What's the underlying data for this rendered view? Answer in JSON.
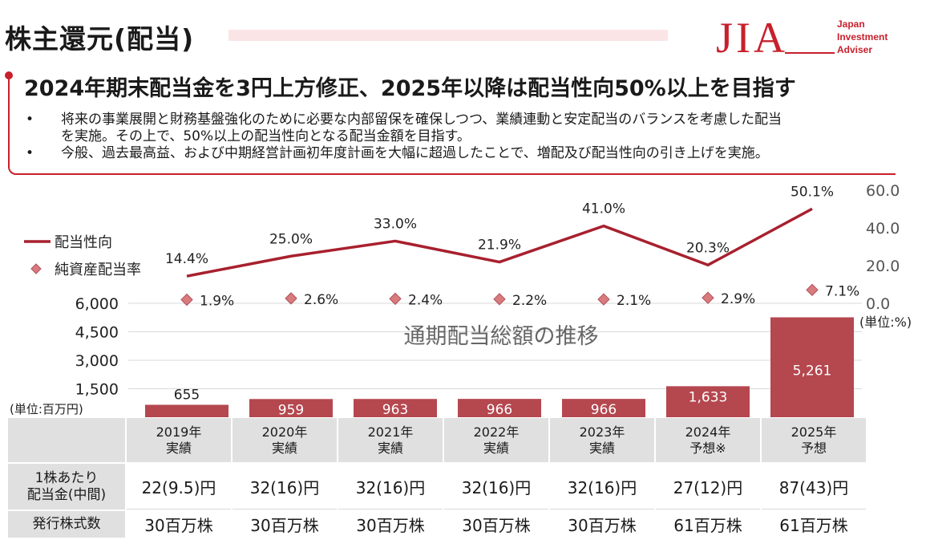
{
  "page": {
    "title": "株主還元(配当)",
    "logo": {
      "mark": "JIA",
      "lines": [
        "Japan",
        "Investment",
        "Adviser"
      ]
    },
    "headline": "2024年期末配当金を3円上方修正、2025年以降は配当性向50%以上を目指す",
    "bullets": [
      {
        "marker": "•",
        "lines": [
          "将来の事業展開と財務基盤強化のために必要な内部留保を確保しつつ、業績連動と安定配当のバランスを考慮した配当",
          "を実施。その上で、50%以上の配当性向となる配当金額を目指す。"
        ]
      },
      {
        "marker": "•",
        "lines": [
          "今般、過去最高益、および中期経営計画初年度計画を大幅に超過したことで、増配及び配当性向の引き上げを実施。"
        ]
      }
    ]
  },
  "chart_data": {
    "type": "bar",
    "title": "通期配当総額の推移",
    "categories": [
      "2019年",
      "2020年",
      "2021年",
      "2022年",
      "2023年",
      "2024年",
      "2025年"
    ],
    "category_sublabels": [
      "実績",
      "実績",
      "実績",
      "実績",
      "実績",
      "予想※",
      "予想"
    ],
    "bar_series": {
      "values": [
        655,
        959,
        963,
        966,
        966,
        1633,
        5261
      ],
      "labels": [
        "655",
        "959",
        "963",
        "966",
        "966",
        "1,633",
        "5,261"
      ],
      "color": "#b5474f"
    },
    "bar_axis": {
      "ticks": [
        "6,000",
        "4,500",
        "3,000",
        "1,500"
      ],
      "unit": "(単位:百万円)",
      "ylim": [
        0,
        6000
      ]
    },
    "line_series": {
      "name": "配当性向",
      "values": [
        14.4,
        25.0,
        33.0,
        21.9,
        41.0,
        20.3,
        50.1
      ],
      "labels": [
        "14.4%",
        "25.0%",
        "33.0%",
        "21.9%",
        "41.0%",
        "20.3%",
        "50.1%"
      ],
      "color": "#a8202e"
    },
    "marker_series": {
      "name": "純資産配当率",
      "values": [
        1.9,
        2.6,
        2.4,
        2.2,
        2.1,
        2.9,
        7.1
      ],
      "labels": [
        "1.9%",
        "2.6%",
        "2.4%",
        "2.2%",
        "2.1%",
        "2.9%",
        "7.1%"
      ],
      "color": "#d87a7e"
    },
    "right_axis": {
      "ticks": [
        "60.0",
        "40.0",
        "20.0",
        "0.0"
      ],
      "unit": "(単位:%)",
      "ylim": [
        0,
        60
      ]
    },
    "grid": true,
    "legend": "left"
  },
  "table": {
    "rows": [
      {
        "label": [
          "1株あたり",
          "配当金(中間)"
        ],
        "values": [
          "22(9.5)円",
          "32(16)円",
          "32(16)円",
          "32(16)円",
          "32(16)円",
          "27(12)円",
          "87(43)円"
        ]
      },
      {
        "label": [
          "発行株式数"
        ],
        "values": [
          "30百万株",
          "30百万株",
          "30百万株",
          "30百万株",
          "30百万株",
          "61百万株",
          "61百万株"
        ]
      }
    ]
  }
}
